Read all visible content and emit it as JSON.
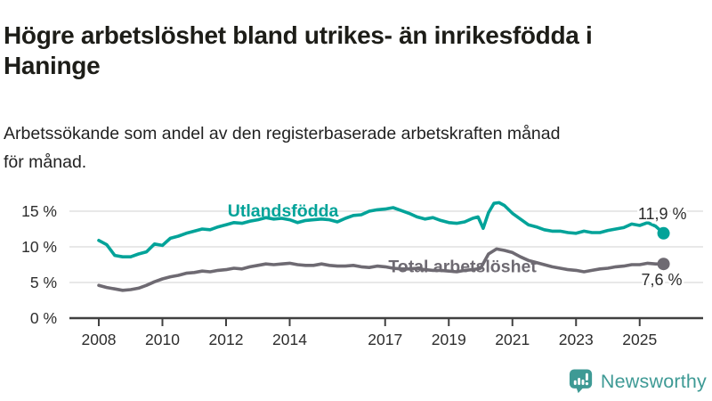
{
  "header": {
    "title_lines": [
      "Högre arbetslöshet bland utrikes- än inrikesfödda i",
      "Haninge"
    ],
    "subtitle_lines": [
      "Arbetssökande som andel av den registerbaserade arbetskraften månad",
      "för månad."
    ]
  },
  "chart_data": {
    "type": "line",
    "title": "",
    "xlabel": "",
    "ylabel": "",
    "grid": "horizontal",
    "legend_position": "inline-labels",
    "x_axis": {
      "min": 2008,
      "max": 2025.75,
      "ticks": [
        2008,
        2010,
        2012,
        2014,
        2017,
        2019,
        2021,
        2023,
        2025
      ]
    },
    "y_axis": {
      "min": 0,
      "max": 17,
      "ticks": [
        {
          "v": 0,
          "label": "0 %"
        },
        {
          "v": 5,
          "label": "5 %"
        },
        {
          "v": 10,
          "label": "10 %"
        },
        {
          "v": 15,
          "label": "15 %"
        }
      ]
    },
    "series": [
      {
        "id": "utlandsfodda",
        "name": "Utlandsfödda",
        "color": "#02a399",
        "end_label": "11,9 %",
        "last_value": 11.9,
        "end_label_side": "above",
        "label_pos": {
          "x": 2012.05,
          "y": 14.25
        },
        "points": [
          [
            2008.0,
            10.9
          ],
          [
            2008.25,
            10.3
          ],
          [
            2008.5,
            8.8
          ],
          [
            2008.75,
            8.6
          ],
          [
            2009.0,
            8.6
          ],
          [
            2009.25,
            9.0
          ],
          [
            2009.5,
            9.3
          ],
          [
            2009.75,
            10.4
          ],
          [
            2010.0,
            10.2
          ],
          [
            2010.25,
            11.2
          ],
          [
            2010.5,
            11.5
          ],
          [
            2010.75,
            11.9
          ],
          [
            2011.0,
            12.2
          ],
          [
            2011.25,
            12.5
          ],
          [
            2011.5,
            12.4
          ],
          [
            2011.75,
            12.8
          ],
          [
            2012.0,
            13.1
          ],
          [
            2012.25,
            13.4
          ],
          [
            2012.5,
            13.3
          ],
          [
            2012.75,
            13.6
          ],
          [
            2013.0,
            13.8
          ],
          [
            2013.25,
            14.1
          ],
          [
            2013.5,
            13.9
          ],
          [
            2013.75,
            14.0
          ],
          [
            2014.0,
            13.8
          ],
          [
            2014.25,
            13.4
          ],
          [
            2014.5,
            13.7
          ],
          [
            2014.75,
            13.8
          ],
          [
            2015.0,
            13.9
          ],
          [
            2015.25,
            13.8
          ],
          [
            2015.5,
            13.5
          ],
          [
            2015.75,
            14.0
          ],
          [
            2016.0,
            14.4
          ],
          [
            2016.25,
            14.5
          ],
          [
            2016.5,
            15.0
          ],
          [
            2016.75,
            15.2
          ],
          [
            2017.0,
            15.3
          ],
          [
            2017.25,
            15.5
          ],
          [
            2017.5,
            15.1
          ],
          [
            2017.75,
            14.7
          ],
          [
            2018.0,
            14.2
          ],
          [
            2018.25,
            13.9
          ],
          [
            2018.5,
            14.1
          ],
          [
            2018.75,
            13.7
          ],
          [
            2019.0,
            13.4
          ],
          [
            2019.25,
            13.3
          ],
          [
            2019.5,
            13.5
          ],
          [
            2019.75,
            14.0
          ],
          [
            2019.92,
            14.2
          ],
          [
            2020.08,
            12.6
          ],
          [
            2020.25,
            14.8
          ],
          [
            2020.42,
            16.1
          ],
          [
            2020.58,
            16.2
          ],
          [
            2020.75,
            15.8
          ],
          [
            2021.0,
            14.7
          ],
          [
            2021.25,
            13.9
          ],
          [
            2021.5,
            13.1
          ],
          [
            2021.75,
            12.8
          ],
          [
            2022.0,
            12.4
          ],
          [
            2022.25,
            12.2
          ],
          [
            2022.5,
            12.2
          ],
          [
            2022.75,
            12.0
          ],
          [
            2023.0,
            11.9
          ],
          [
            2023.25,
            12.2
          ],
          [
            2023.5,
            12.0
          ],
          [
            2023.75,
            12.0
          ],
          [
            2024.0,
            12.3
          ],
          [
            2024.25,
            12.5
          ],
          [
            2024.5,
            12.7
          ],
          [
            2024.75,
            13.2
          ],
          [
            2025.0,
            13.0
          ],
          [
            2025.25,
            13.4
          ],
          [
            2025.5,
            12.9
          ],
          [
            2025.75,
            11.9
          ]
        ]
      },
      {
        "id": "total",
        "name": "Total arbetslöshet",
        "color": "#6e6a72",
        "end_label": "7,6 %",
        "last_value": 7.6,
        "end_label_side": "below",
        "label_pos": {
          "x": 2017.1,
          "y": 6.45
        },
        "points": [
          [
            2008.0,
            4.6
          ],
          [
            2008.25,
            4.3
          ],
          [
            2008.5,
            4.1
          ],
          [
            2008.75,
            3.9
          ],
          [
            2009.0,
            4.0
          ],
          [
            2009.25,
            4.2
          ],
          [
            2009.5,
            4.6
          ],
          [
            2009.75,
            5.1
          ],
          [
            2010.0,
            5.5
          ],
          [
            2010.25,
            5.8
          ],
          [
            2010.5,
            6.0
          ],
          [
            2010.75,
            6.3
          ],
          [
            2011.0,
            6.4
          ],
          [
            2011.25,
            6.6
          ],
          [
            2011.5,
            6.5
          ],
          [
            2011.75,
            6.7
          ],
          [
            2012.0,
            6.8
          ],
          [
            2012.25,
            7.0
          ],
          [
            2012.5,
            6.9
          ],
          [
            2012.75,
            7.2
          ],
          [
            2013.0,
            7.4
          ],
          [
            2013.25,
            7.6
          ],
          [
            2013.5,
            7.5
          ],
          [
            2013.75,
            7.6
          ],
          [
            2014.0,
            7.7
          ],
          [
            2014.25,
            7.5
          ],
          [
            2014.5,
            7.4
          ],
          [
            2014.75,
            7.4
          ],
          [
            2015.0,
            7.6
          ],
          [
            2015.25,
            7.4
          ],
          [
            2015.5,
            7.3
          ],
          [
            2015.75,
            7.3
          ],
          [
            2016.0,
            7.4
          ],
          [
            2016.25,
            7.2
          ],
          [
            2016.5,
            7.1
          ],
          [
            2016.75,
            7.3
          ],
          [
            2017.0,
            7.2
          ],
          [
            2017.25,
            7.0
          ],
          [
            2017.5,
            6.9
          ],
          [
            2017.75,
            6.9
          ],
          [
            2018.0,
            7.0
          ],
          [
            2018.25,
            6.8
          ],
          [
            2018.5,
            6.7
          ],
          [
            2018.75,
            6.7
          ],
          [
            2019.0,
            6.6
          ],
          [
            2019.25,
            6.5
          ],
          [
            2019.5,
            6.7
          ],
          [
            2019.75,
            6.8
          ],
          [
            2020.0,
            7.0
          ],
          [
            2020.25,
            9.0
          ],
          [
            2020.5,
            9.7
          ],
          [
            2020.75,
            9.5
          ],
          [
            2021.0,
            9.2
          ],
          [
            2021.25,
            8.6
          ],
          [
            2021.5,
            8.1
          ],
          [
            2021.75,
            7.8
          ],
          [
            2022.0,
            7.5
          ],
          [
            2022.25,
            7.2
          ],
          [
            2022.5,
            7.0
          ],
          [
            2022.75,
            6.8
          ],
          [
            2023.0,
            6.7
          ],
          [
            2023.25,
            6.5
          ],
          [
            2023.5,
            6.7
          ],
          [
            2023.75,
            6.9
          ],
          [
            2024.0,
            7.0
          ],
          [
            2024.25,
            7.2
          ],
          [
            2024.5,
            7.3
          ],
          [
            2024.75,
            7.5
          ],
          [
            2025.0,
            7.5
          ],
          [
            2025.25,
            7.7
          ],
          [
            2025.5,
            7.6
          ],
          [
            2025.75,
            7.6
          ]
        ]
      }
    ],
    "colors": {
      "gridline": "#d9d9d9",
      "axis": "#404040",
      "tick_label": "#2d2d2d",
      "end_label": "#2b2b2b"
    }
  },
  "footer": {
    "brand": "Newsworthy",
    "brand_color": "#3e9a95"
  }
}
